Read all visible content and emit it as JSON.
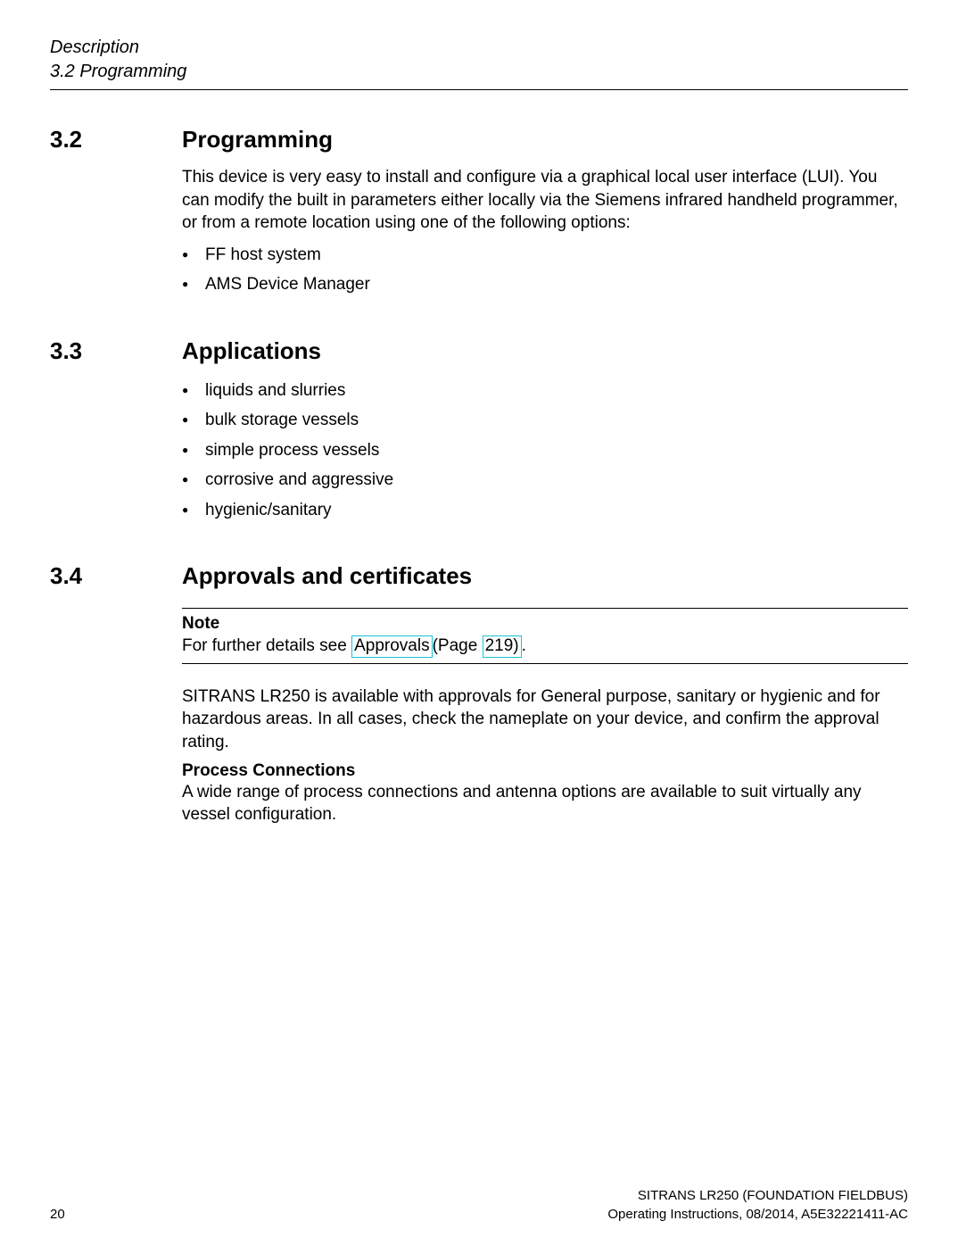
{
  "header": {
    "chapter": "Description",
    "sub": "3.2 Programming"
  },
  "sections": {
    "s1": {
      "num": "3.2",
      "title": "Programming",
      "para": "This device is very easy to install and configure via a graphical local user interface (LUI). You can modify the built in parameters either locally via the Siemens infrared handheld programmer, or from a remote location using one of the following options:",
      "bullets": [
        "FF host system",
        "AMS Device Manager"
      ]
    },
    "s2": {
      "num": "3.3",
      "title": "Applications",
      "bullets": [
        "liquids and slurries",
        "bulk storage vessels",
        "simple process vessels",
        "corrosive and aggressive",
        "hygienic/sanitary"
      ]
    },
    "s3": {
      "num": "3.4",
      "title": "Approvals and certificates",
      "note_label": "Note",
      "note_prefix": "For further details see ",
      "link1_text": "Approvals ",
      "link_mid": "(Page ",
      "link2_text": "219)",
      "note_suffix": ".",
      "para2": "SITRANS LR250 is available with approvals for General purpose, sanitary or hygienic and for hazardous areas. In all cases, check the nameplate on your device, and confirm the approval rating.",
      "subhead": "Process Connections",
      "para3": "A wide range of process connections and antenna options are available to suit virtually any vessel configuration."
    }
  },
  "link_color": "#19c3d6",
  "footer": {
    "line1": "SITRANS LR250 (FOUNDATION FIELDBUS)",
    "line2": "Operating Instructions, 08/2014, A5E32221411-AC",
    "page": "20"
  }
}
